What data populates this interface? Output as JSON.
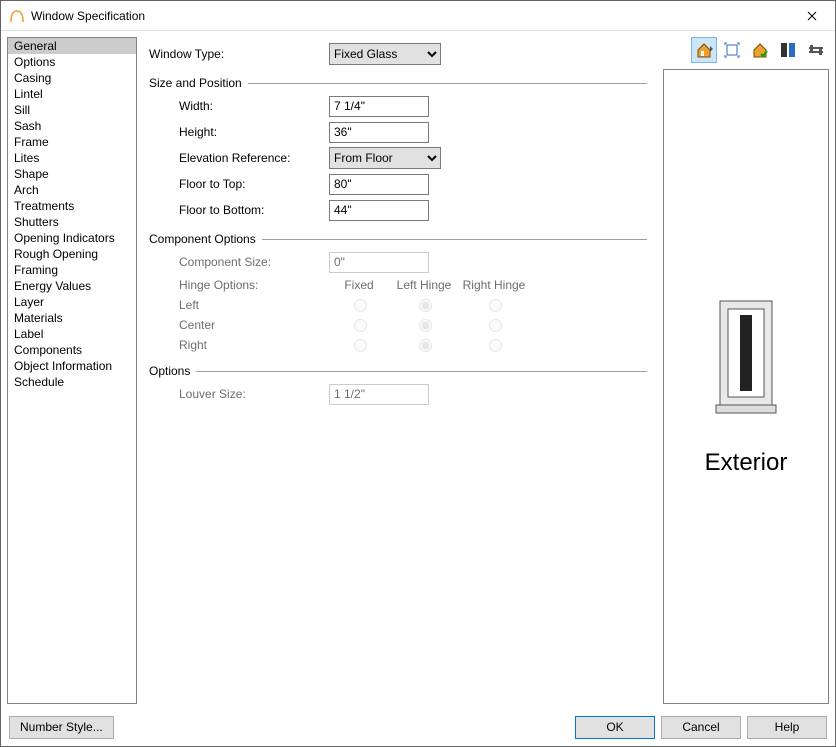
{
  "window": {
    "title": "Window Specification"
  },
  "sidebar": {
    "items": [
      "General",
      "Options",
      "Casing",
      "Lintel",
      "Sill",
      "Sash",
      "Frame",
      "Lites",
      "Shape",
      "Arch",
      "Treatments",
      "Shutters",
      "Opening Indicators",
      "Rough Opening",
      "Framing",
      "Energy Values",
      "Layer",
      "Materials",
      "Label",
      "Components",
      "Object Information",
      "Schedule"
    ],
    "selected_index": 0
  },
  "form": {
    "window_type": {
      "label": "Window Type:",
      "value": "Fixed Glass",
      "options": [
        "Fixed Glass"
      ]
    },
    "size_position": {
      "title": "Size and Position",
      "width": {
        "label": "Width:",
        "value": "7 1/4\""
      },
      "height": {
        "label": "Height:",
        "value": "36\""
      },
      "elev_ref": {
        "label": "Elevation Reference:",
        "value": "From Floor",
        "options": [
          "From Floor"
        ]
      },
      "floor_top": {
        "label": "Floor to Top:",
        "value": "80\""
      },
      "floor_bottom": {
        "label": "Floor to Bottom:",
        "value": "44\""
      }
    },
    "component_options": {
      "title": "Component Options",
      "component_size": {
        "label": "Component Size:",
        "value": "0\""
      },
      "hinge_options_label": "Hinge Options:",
      "col_fixed": "Fixed",
      "col_left": "Left Hinge",
      "col_right": "Right Hinge",
      "rows": [
        {
          "label": "Left",
          "selected": "left"
        },
        {
          "label": "Center",
          "selected": "left"
        },
        {
          "label": "Right",
          "selected": "left"
        }
      ]
    },
    "options": {
      "title": "Options",
      "louver_size": {
        "label": "Louver Size:",
        "value": "1 1/2\""
      }
    }
  },
  "preview": {
    "caption": "Exterior"
  },
  "buttons": {
    "number_style": "Number Style...",
    "ok": "OK",
    "cancel": "Cancel",
    "help": "Help"
  },
  "colors": {
    "accent": "#0078d7",
    "orange": "#f0a030",
    "blue": "#2c6cc0"
  }
}
